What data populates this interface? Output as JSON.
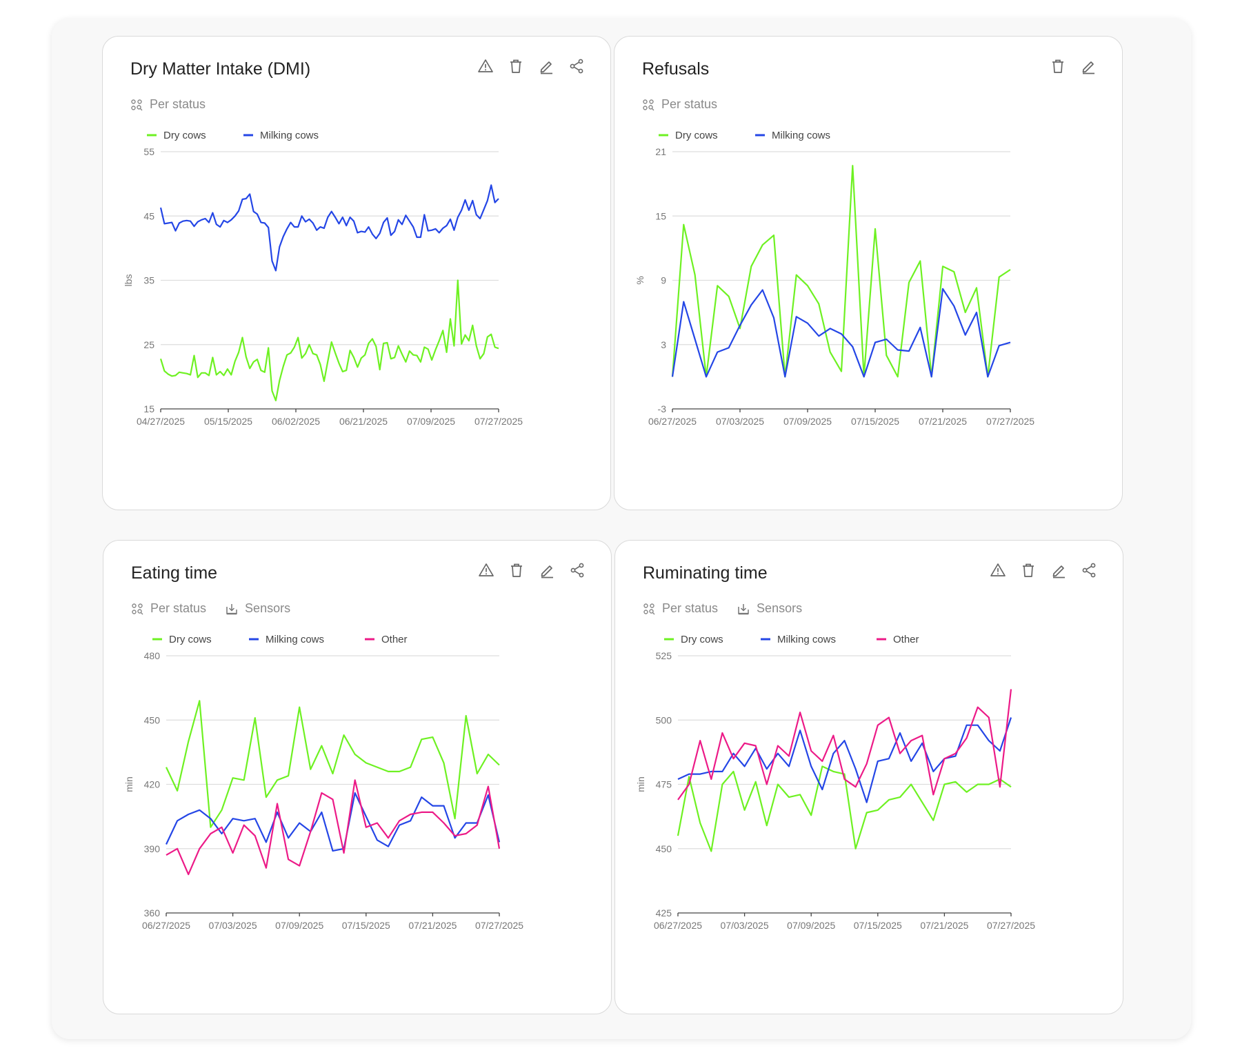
{
  "actions": {
    "warning": "warning-icon",
    "delete": "trash-icon",
    "edit": "pencil-icon",
    "share": "share-icon"
  },
  "colors": {
    "dry": "#6ef122",
    "milking": "#2446e6",
    "other": "#ec1a87",
    "grid": "#dddddd"
  },
  "cards": [
    {
      "title": "Dry Matter Intake (DMI)",
      "filters": [
        "Per status"
      ],
      "actions": [
        "warning",
        "delete",
        "edit",
        "share"
      ]
    },
    {
      "title": "Refusals",
      "filters": [
        "Per status"
      ],
      "actions": [
        "delete",
        "edit"
      ]
    },
    {
      "title": "Eating time",
      "filters": [
        "Per status",
        "Sensors"
      ],
      "actions": [
        "warning",
        "delete",
        "edit",
        "share"
      ]
    },
    {
      "title": "Ruminating time",
      "filters": [
        "Per status",
        "Sensors"
      ],
      "actions": [
        "warning",
        "delete",
        "edit",
        "share"
      ]
    }
  ],
  "chart_data": [
    {
      "type": "line",
      "ylabel": "lbs",
      "ylim": [
        15,
        55
      ],
      "yticks": [
        15,
        25,
        35,
        45,
        55
      ],
      "xticks": [
        "04/27/2025",
        "05/15/2025",
        "06/02/2025",
        "06/21/2025",
        "07/09/2025",
        "07/27/2025"
      ],
      "legend": "top-left",
      "grid": true,
      "series": [
        {
          "name": "Dry cows",
          "color": "#6ef122",
          "values": [
            22.8,
            20.9,
            20.4,
            20.1,
            20.2,
            20.7,
            20.6,
            20.5,
            20.3,
            23.3,
            19.9,
            20.6,
            20.6,
            20.2,
            23.0,
            20.3,
            20.8,
            20.2,
            21.2,
            20.3,
            22.4,
            23.8,
            26.1,
            23.1,
            21.3,
            22.3,
            22.7,
            21.0,
            20.7,
            24.5,
            17.8,
            16.3,
            19.4,
            21.6,
            23.4,
            23.7,
            24.6,
            26.1,
            22.9,
            23.6,
            25.0,
            23.6,
            23.4,
            21.9,
            19.3,
            22.4,
            25.4,
            23.7,
            22.1,
            20.8,
            21.0,
            24.1,
            23.0,
            21.5,
            22.9,
            23.4,
            25.2,
            25.9,
            24.7,
            21.1,
            25.2,
            25.3,
            22.8,
            23.0,
            24.8,
            23.5,
            22.3,
            24.0,
            23.4,
            23.3,
            22.3,
            24.6,
            24.3,
            22.6,
            24.2,
            25.6,
            27.2,
            23.8,
            29.0,
            24.8,
            35.0,
            25.1,
            26.5,
            25.6,
            28.0,
            24.8,
            22.8,
            23.6,
            26.2,
            26.6,
            24.6,
            24.4
          ]
        },
        {
          "name": "Milking cows",
          "color": "#2446e6",
          "values": [
            46.3,
            43.8,
            43.9,
            44.0,
            42.7,
            43.9,
            44.2,
            44.3,
            44.2,
            43.4,
            44.1,
            44.4,
            44.6,
            44.0,
            45.5,
            43.7,
            43.3,
            44.3,
            44.0,
            44.4,
            45.0,
            45.8,
            47.6,
            47.7,
            48.4,
            45.7,
            45.3,
            44.0,
            43.9,
            43.2,
            38.0,
            36.5,
            40.2,
            41.8,
            43.0,
            44.0,
            43.3,
            43.3,
            45.0,
            44.1,
            44.5,
            43.9,
            42.8,
            43.3,
            43.1,
            44.8,
            45.7,
            44.8,
            43.8,
            44.8,
            43.5,
            44.8,
            44.2,
            42.4,
            42.6,
            42.5,
            43.3,
            42.2,
            41.5,
            42.3,
            44.0,
            44.7,
            42.0,
            42.6,
            44.4,
            43.7,
            45.1,
            44.2,
            43.3,
            41.7,
            41.7,
            45.2,
            42.7,
            42.8,
            43.0,
            42.4,
            43.1,
            43.5,
            44.5,
            42.8,
            44.8,
            45.9,
            47.5,
            45.9,
            47.4,
            45.2,
            44.6,
            46.0,
            47.4,
            49.8,
            47.1,
            47.7
          ]
        }
      ]
    },
    {
      "type": "line",
      "ylabel": "%",
      "ylim": [
        -3,
        21
      ],
      "yticks": [
        -3,
        3,
        9,
        15,
        21
      ],
      "xticks": [
        "06/27/2025",
        "07/03/2025",
        "07/09/2025",
        "07/15/2025",
        "07/21/2025",
        "07/27/2025"
      ],
      "legend": "top-left",
      "grid": true,
      "series": [
        {
          "name": "Dry cows",
          "color": "#6ef122",
          "values": [
            0,
            14.2,
            9.5,
            0,
            8.5,
            7.5,
            4.5,
            10.3,
            12.3,
            13.2,
            0,
            9.5,
            8.5,
            6.8,
            2.3,
            0.5,
            19.7,
            0,
            13.8,
            2,
            0,
            8.8,
            10.8,
            0,
            10.3,
            9.8,
            6,
            8.3,
            0,
            9.3,
            10
          ]
        },
        {
          "name": "Milking cows",
          "color": "#2446e6",
          "values": [
            0,
            7,
            3.5,
            0,
            2.3,
            2.7,
            4.8,
            6.7,
            8.1,
            5.5,
            0,
            5.6,
            5,
            3.8,
            4.5,
            4,
            2.8,
            0,
            3.2,
            3.5,
            2.5,
            2.4,
            4.6,
            0,
            8.2,
            6.6,
            3.9,
            6,
            0,
            2.9,
            3.2
          ]
        }
      ]
    },
    {
      "type": "line",
      "ylabel": "min",
      "ylim": [
        360,
        480
      ],
      "yticks": [
        360,
        390,
        420,
        450,
        480
      ],
      "xticks": [
        "06/27/2025",
        "07/03/2025",
        "07/09/2025",
        "07/15/2025",
        "07/21/2025",
        "07/27/2025"
      ],
      "legend": "top-left",
      "grid": true,
      "series": [
        {
          "name": "Dry cows",
          "color": "#6ef122",
          "values": [
            428,
            417,
            440,
            459,
            400,
            408,
            423,
            422,
            451,
            414,
            422,
            424,
            456,
            427,
            438,
            425,
            443,
            434,
            430,
            428,
            426,
            426,
            428,
            441,
            442,
            430,
            404,
            452,
            425,
            434,
            429
          ]
        },
        {
          "name": "Milking cows",
          "color": "#2446e6",
          "values": [
            392,
            403,
            406,
            408,
            404,
            397,
            404,
            403,
            404,
            393,
            407,
            395,
            402,
            398,
            407,
            389,
            390,
            416,
            405,
            394,
            391,
            401,
            403,
            414,
            410,
            410,
            395,
            402,
            402,
            415,
            393
          ]
        },
        {
          "name": "Other",
          "color": "#ec1a87",
          "values": [
            387,
            390,
            378,
            390,
            397,
            400,
            388,
            401,
            396,
            381,
            411,
            385,
            382,
            398,
            416,
            413,
            388,
            422,
            400,
            402,
            395,
            403,
            406,
            407,
            407,
            402,
            396,
            397,
            401,
            419,
            390
          ]
        }
      ]
    },
    {
      "type": "line",
      "ylabel": "min",
      "ylim": [
        425,
        525
      ],
      "yticks": [
        425,
        450,
        475,
        500,
        525
      ],
      "xticks": [
        "06/27/2025",
        "07/03/2025",
        "07/09/2025",
        "07/15/2025",
        "07/21/2025",
        "07/27/2025"
      ],
      "legend": "top-left",
      "grid": true,
      "series": [
        {
          "name": "Dry cows",
          "color": "#6ef122",
          "values": [
            455,
            478,
            460,
            449,
            475,
            480,
            465,
            476,
            459,
            475,
            470,
            471,
            463,
            482,
            480,
            479,
            450,
            464,
            465,
            469,
            470,
            475,
            468,
            461,
            475,
            476,
            472,
            475,
            475,
            477,
            474
          ]
        },
        {
          "name": "Milking cows",
          "color": "#2446e6",
          "values": [
            477,
            479,
            479,
            480,
            480,
            487,
            482,
            489,
            481,
            487,
            482,
            496,
            482,
            473,
            487,
            492,
            481,
            468,
            484,
            485,
            495,
            484,
            491,
            480,
            485,
            486,
            498,
            498,
            492,
            488,
            501
          ]
        },
        {
          "name": "Other",
          "color": "#ec1a87",
          "values": [
            469,
            475,
            492,
            477,
            495,
            485,
            491,
            490,
            475,
            490,
            486,
            503,
            488,
            484,
            494,
            477,
            474,
            483,
            498,
            501,
            487,
            492,
            494,
            471,
            485,
            487,
            493,
            505,
            501,
            474,
            512
          ]
        }
      ]
    }
  ]
}
